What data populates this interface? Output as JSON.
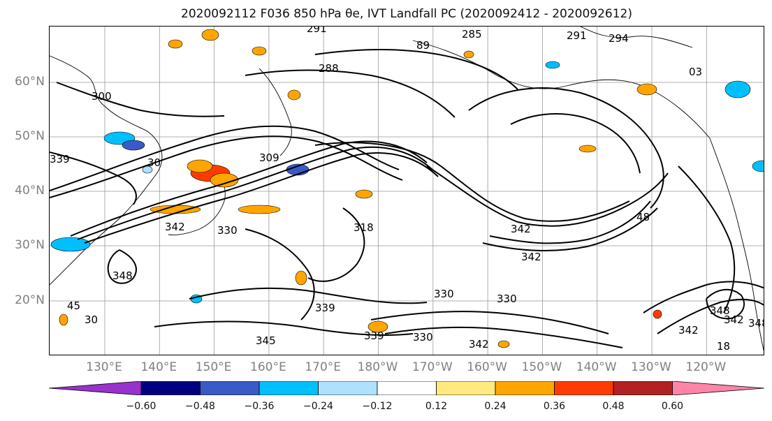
{
  "title": "2020092112 F036 850 hPa θe, IVT Landfall PC (2020092412 - 2020092612)",
  "latitude_labels": [
    "60°N",
    "50°N",
    "40°N",
    "30°N",
    "20°N"
  ],
  "longitude_labels": [
    "130°E",
    "140°E",
    "150°E",
    "160°E",
    "170°E",
    "180°W",
    "170°W",
    "160°W",
    "150°W",
    "140°W",
    "130°W",
    "120°W"
  ],
  "contour_labels": [
    "291",
    "285",
    "291",
    "294",
    "288",
    "89",
    "03",
    "300",
    "309",
    "30",
    "342",
    "330",
    "318",
    "348",
    "339",
    "330",
    "330",
    "345",
    "339",
    "330",
    "342",
    "342",
    "342",
    "348",
    "342",
    "348",
    "339",
    "30",
    "45",
    "48",
    "18",
    "342"
  ],
  "colorbar": {
    "colors": [
      "#9932cc",
      "#000080",
      "#3a5ac8",
      "#00bfff",
      "#b0e0ff",
      "#ffffff",
      "#ffea80",
      "#ffa500",
      "#ff3c00",
      "#b22222",
      "#ff85a8"
    ],
    "tick_labels": [
      "−0.60",
      "−0.48",
      "−0.36",
      "−0.24",
      "−0.12",
      "0.12",
      "0.24",
      "0.36",
      "0.48",
      "0.60"
    ]
  },
  "shading_colors": {
    "orange": "#ffa500",
    "red_orange": "#ff3c00",
    "light_blue": "#b0e0ff",
    "sky_blue": "#00bfff",
    "blue": "#3a5ac8"
  }
}
